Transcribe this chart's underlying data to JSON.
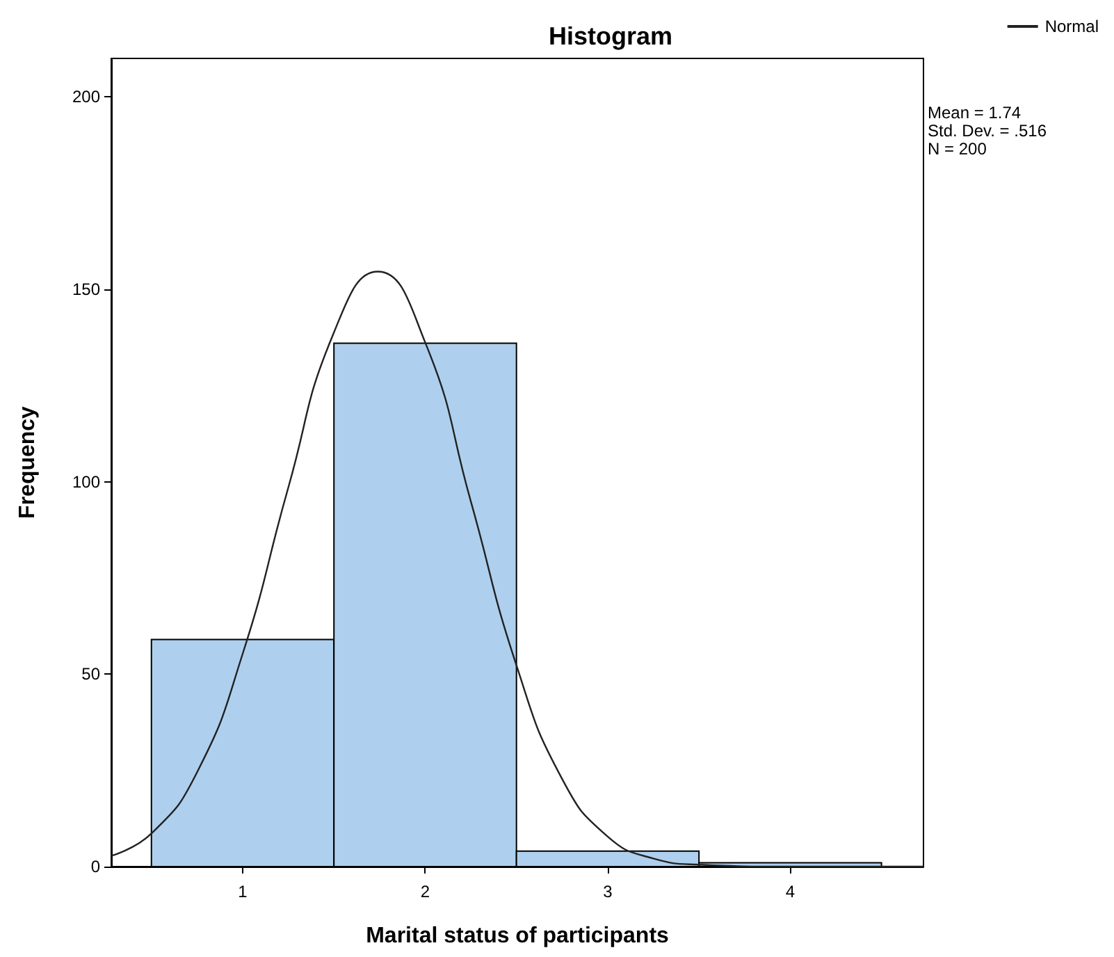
{
  "chart_data": {
    "type": "histogram",
    "title": "Histogram",
    "xlabel": "Marital status of participants",
    "ylabel": "Frequency",
    "bins": [
      0.5,
      1.5,
      2.5,
      3.5,
      4.5
    ],
    "values": [
      59,
      136,
      4,
      1
    ],
    "color": "#aed0ee",
    "series": [
      {
        "type": "line",
        "name": "Normal",
        "color": "#222222",
        "x": [
          0.28,
          0.5,
          0.75,
          1.0,
          1.25,
          1.5,
          1.74,
          2.0,
          2.25,
          2.5,
          2.75,
          3.0,
          3.25,
          3.5,
          4.0,
          4.73
        ],
        "values": [
          2.8,
          8.6,
          24.5,
          55.3,
          98.5,
          138.8,
          154.6,
          136.2,
          94.9,
          52.3,
          22.8,
          7.8,
          2.1,
          0.5,
          0,
          0
        ]
      }
    ],
    "xlim": [
      0.28,
      4.73
    ],
    "xticks": [
      1,
      2,
      3,
      4
    ],
    "ylim": [
      0,
      210
    ],
    "yticks": [
      0,
      50,
      100,
      150,
      200
    ],
    "grid": false,
    "legend": "top right",
    "marker": "none",
    "annotations": [
      "Mean = 1.74",
      "Std. Dev. = .516",
      "N = 200"
    ]
  }
}
